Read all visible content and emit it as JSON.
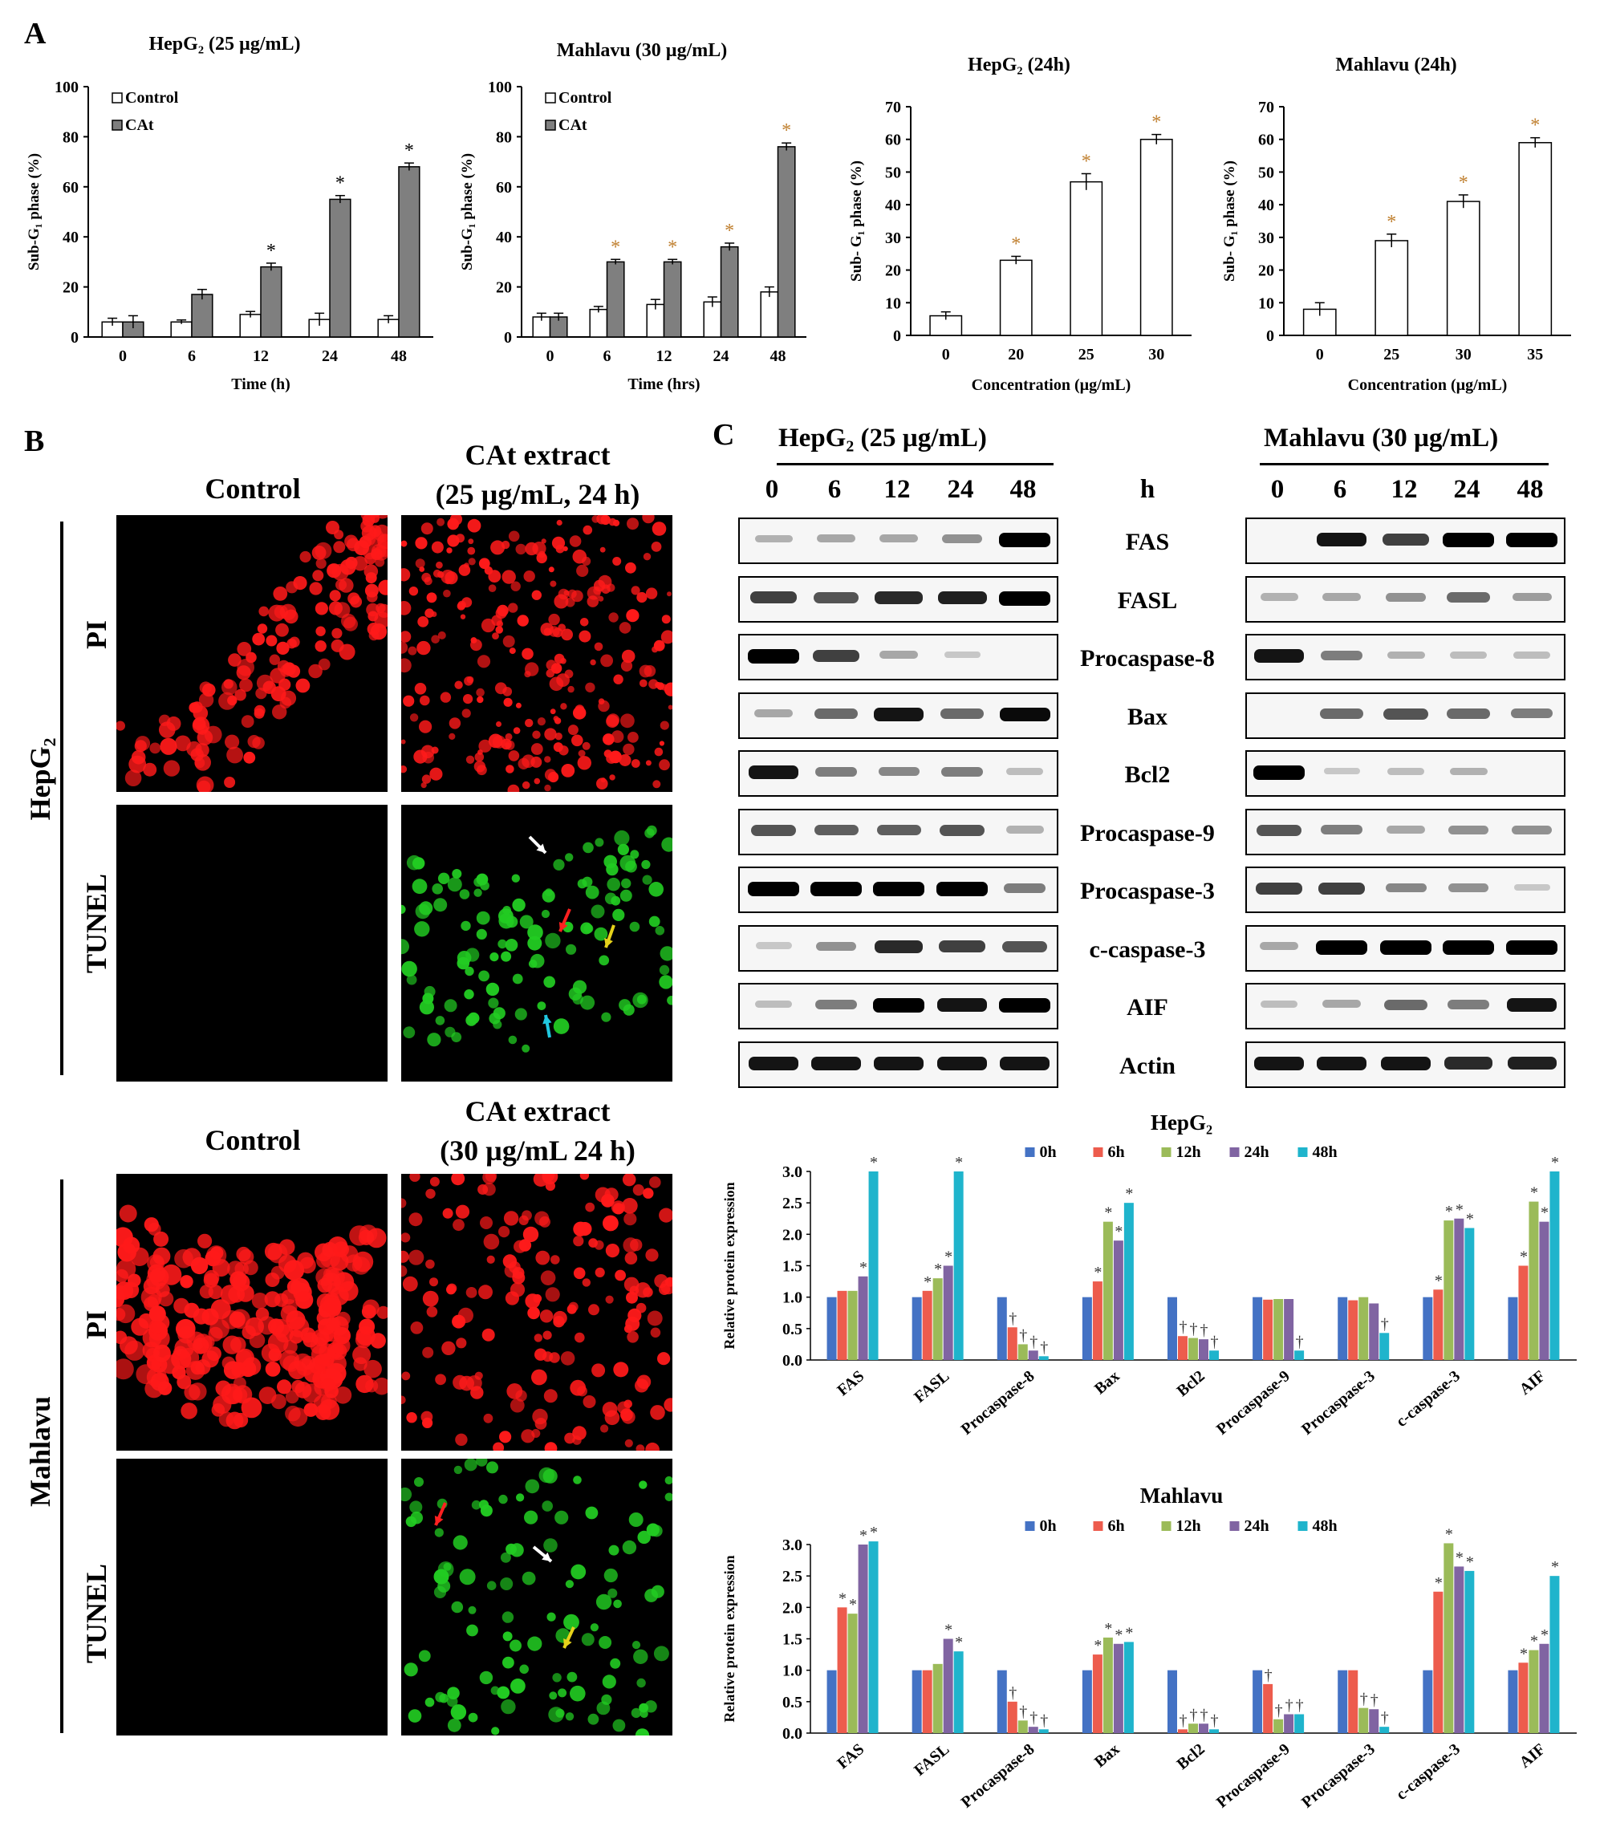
{
  "panel_labels": {
    "A": "A",
    "B": "B",
    "C": "C"
  },
  "chart_data": [
    {
      "id": "a1",
      "type": "bar",
      "title": "HepG₂ (25 µg/mL)",
      "xlabel": "Time (h)",
      "ylabel": "Sub-G₁ phase (%)",
      "categories": [
        "0",
        "6",
        "12",
        "24",
        "48"
      ],
      "ylim": [
        0,
        100
      ],
      "yticks": [
        0,
        20,
        40,
        60,
        80,
        100
      ],
      "legend": "top-left",
      "series": [
        {
          "name": "Control",
          "color": "#ffffff",
          "values": [
            6,
            6,
            9,
            7,
            7
          ],
          "errors": [
            1.5,
            0.8,
            1.2,
            2.5,
            1.5
          ]
        },
        {
          "name": "CAt",
          "color": "#7f7f7f",
          "values": [
            6,
            17,
            28,
            55,
            68
          ],
          "errors": [
            2.5,
            2,
            1.5,
            1.5,
            1.5
          ]
        }
      ],
      "stars": [
        "",
        "",
        "*",
        "*",
        "*"
      ],
      "star_color": "#000000"
    },
    {
      "id": "a2",
      "type": "bar",
      "title": "Mahlavu (30 µg/mL)",
      "xlabel": "Time (hrs)",
      "ylabel": "Sub-G₁ phase (%)",
      "categories": [
        "0",
        "6",
        "12",
        "24",
        "48"
      ],
      "ylim": [
        0,
        100
      ],
      "yticks": [
        0,
        20,
        40,
        60,
        80,
        100
      ],
      "legend": "top-left",
      "series": [
        {
          "name": "Control",
          "color": "#ffffff",
          "values": [
            8,
            11,
            13,
            14,
            18
          ],
          "errors": [
            1.5,
            1.2,
            2,
            2,
            2
          ]
        },
        {
          "name": "CAt",
          "color": "#7f7f7f",
          "values": [
            8,
            30,
            30,
            36,
            76
          ],
          "errors": [
            1.5,
            1,
            1,
            1.5,
            1.5
          ]
        }
      ],
      "stars": [
        "",
        "*",
        "*",
        "*",
        "*"
      ],
      "star_color": "#c08030"
    },
    {
      "id": "a3",
      "type": "bar",
      "title": "HepG₂ (24h)",
      "xlabel": "Concentration  (µg/mL)",
      "ylabel": "Sub- G₁ phase (%)",
      "categories": [
        "0",
        "20",
        "25",
        "30"
      ],
      "ylim": [
        0,
        70
      ],
      "yticks": [
        0,
        10,
        20,
        30,
        40,
        50,
        60,
        70
      ],
      "series": [
        {
          "name": "",
          "color": "#ffffff",
          "values": [
            6,
            23,
            47,
            60
          ],
          "errors": [
            1.2,
            1.2,
            2.5,
            1.5
          ]
        }
      ],
      "stars": [
        "",
        "*",
        "*",
        "*"
      ],
      "star_color": "#c08030"
    },
    {
      "id": "a4",
      "type": "bar",
      "title": "Mahlavu (24h)",
      "xlabel": "Concentration  (µg/mL)",
      "ylabel": "Sub- G₁ phase (%)",
      "categories": [
        "0",
        "25",
        "30",
        "35"
      ],
      "ylim": [
        0,
        70
      ],
      "yticks": [
        0,
        10,
        20,
        30,
        40,
        50,
        60,
        70
      ],
      "series": [
        {
          "name": "",
          "color": "#ffffff",
          "values": [
            8,
            29,
            41,
            59
          ],
          "errors": [
            2,
            2,
            2,
            1.5
          ]
        }
      ],
      "stars": [
        "",
        "*",
        "*",
        "*"
      ],
      "star_color": "#c08030"
    },
    {
      "id": "c1",
      "type": "bar",
      "title": "HepG₂",
      "ylabel": "Relative protein expression",
      "categories": [
        "FAS",
        "FASL",
        "Procaspase-8",
        "Bax",
        "Bcl2",
        "Procaspase-9",
        "Procaspase-3",
        "c-caspase-3",
        "AIF"
      ],
      "ylim": [
        0,
        3.0
      ],
      "yticks": [
        "0.0",
        "0.5",
        "1.0",
        "1.5",
        "2.0",
        "2.5",
        "3.0"
      ],
      "legend": "top",
      "series": [
        {
          "name": "0h",
          "color": "#4472c4",
          "values": [
            1.0,
            1.0,
            1.0,
            1.0,
            1.0,
            1.0,
            1.0,
            1.0,
            1.0
          ]
        },
        {
          "name": "6h",
          "color": "#ed5c4d",
          "values": [
            1.1,
            1.1,
            0.52,
            1.25,
            0.38,
            0.96,
            0.95,
            1.12,
            1.5
          ]
        },
        {
          "name": "12h",
          "color": "#9bbb59",
          "values": [
            1.1,
            1.3,
            0.25,
            2.2,
            0.35,
            0.97,
            1.0,
            2.22,
            2.52
          ]
        },
        {
          "name": "24h",
          "color": "#8064a2",
          "values": [
            1.33,
            1.5,
            0.15,
            1.9,
            0.33,
            0.97,
            0.9,
            2.25,
            2.2
          ]
        },
        {
          "name": "48h",
          "color": "#1fb4cc",
          "values": [
            3.0,
            3.0,
            0.06,
            2.5,
            0.15,
            0.15,
            0.43,
            2.1,
            3.0
          ]
        }
      ],
      "marks": [
        [
          "",
          "",
          "",
          "*",
          "*"
        ],
        [
          "",
          "*",
          "*",
          "*",
          "*"
        ],
        [
          "",
          "†",
          "†",
          "†",
          "†"
        ],
        [
          "",
          "*",
          "*",
          "*",
          "*"
        ],
        [
          "",
          "†",
          "†",
          "†",
          "†"
        ],
        [
          "",
          "",
          "",
          "",
          "†"
        ],
        [
          "",
          "",
          "",
          "",
          "†"
        ],
        [
          "",
          "*",
          "*",
          "*",
          "*"
        ],
        [
          "",
          "*",
          "*",
          "*",
          "*"
        ]
      ]
    },
    {
      "id": "c2",
      "type": "bar",
      "title": "Mahlavu",
      "ylabel": "Relative protein expression",
      "categories": [
        "FAS",
        "FASL",
        "Procaspase-8",
        "Bax",
        "Bcl2",
        "Procaspase-9",
        "Procaspase-3",
        "c-caspase-3",
        "AIF"
      ],
      "ylim": [
        0,
        3.0
      ],
      "yticks": [
        "0.0",
        "0.5",
        "1.0",
        "1.5",
        "2.0",
        "2.5",
        "3.0"
      ],
      "legend": "top",
      "series": [
        {
          "name": "0h",
          "color": "#4472c4",
          "values": [
            1.0,
            1.0,
            1.0,
            1.0,
            1.0,
            1.0,
            1.0,
            1.0,
            1.0
          ]
        },
        {
          "name": "6h",
          "color": "#ed5c4d",
          "values": [
            2.0,
            1.0,
            0.5,
            1.25,
            0.06,
            0.78,
            1.0,
            2.25,
            1.12
          ]
        },
        {
          "name": "12h",
          "color": "#9bbb59",
          "values": [
            1.9,
            1.1,
            0.2,
            1.52,
            0.15,
            0.22,
            0.4,
            3.02,
            1.32
          ]
        },
        {
          "name": "24h",
          "color": "#8064a2",
          "values": [
            3.0,
            1.5,
            0.1,
            1.42,
            0.15,
            0.3,
            0.38,
            2.65,
            1.42
          ]
        },
        {
          "name": "48h",
          "color": "#1fb4cc",
          "values": [
            3.05,
            1.3,
            0.06,
            1.45,
            0.06,
            0.3,
            0.1,
            2.58,
            2.5
          ]
        }
      ],
      "marks": [
        [
          "",
          "*",
          "*",
          "*",
          "*"
        ],
        [
          "",
          "",
          "",
          "*",
          "*"
        ],
        [
          "",
          "†",
          "†",
          "†",
          "†"
        ],
        [
          "",
          "*",
          "*",
          "*",
          "*"
        ],
        [
          "",
          "†",
          "†",
          "†",
          "†"
        ],
        [
          "",
          "†",
          "†",
          "†",
          "†"
        ],
        [
          "",
          "",
          "†",
          "†",
          "†"
        ],
        [
          "",
          "*",
          "*",
          "*",
          "*"
        ],
        [
          "",
          "*",
          "*",
          "*",
          "*"
        ]
      ]
    }
  ],
  "panel_b": {
    "hep": {
      "cell": "HepG₂",
      "control": "Control",
      "treat_line1": "CAt extract",
      "treat_line2": "(25 µg/mL, 24 h)",
      "row1": "PI",
      "row2": "TUNEL"
    },
    "mah": {
      "cell": "Mahlavu",
      "control": "Control",
      "treat_line1": "CAt extract",
      "treat_line2": "(30 µg/mL 24 h)",
      "row1": "PI",
      "row2": "TUNEL"
    }
  },
  "panel_c": {
    "hep_header": "HepG₂  (25 µg/mL)",
    "mah_header": "Mahlavu (30 µg/mL)",
    "time_unit": "h",
    "times": [
      "0",
      "6",
      "12",
      "24",
      "48"
    ],
    "proteins": [
      "FAS",
      "FASL",
      "Procaspase-8",
      "Bax",
      "Bcl2",
      "Procaspase-9",
      "Procaspase-3",
      "c-caspase-3",
      "AIF",
      "Actin"
    ],
    "hep_bands": [
      [
        0.15,
        0.2,
        0.2,
        0.3,
        1.0
      ],
      [
        0.7,
        0.6,
        0.8,
        0.85,
        1.0
      ],
      [
        1.0,
        0.7,
        0.2,
        0.05,
        0.0
      ],
      [
        0.2,
        0.5,
        0.9,
        0.5,
        0.95
      ],
      [
        0.9,
        0.4,
        0.35,
        0.4,
        0.1
      ],
      [
        0.6,
        0.55,
        0.55,
        0.6,
        0.15
      ],
      [
        1.0,
        1.0,
        1.0,
        1.0,
        0.4
      ],
      [
        0.05,
        0.3,
        0.8,
        0.7,
        0.6
      ],
      [
        0.1,
        0.4,
        1.0,
        0.9,
        1.0
      ],
      [
        0.9,
        0.9,
        0.9,
        0.9,
        0.9
      ]
    ],
    "mah_bands": [
      [
        0.0,
        0.9,
        0.7,
        1.0,
        1.0
      ],
      [
        0.15,
        0.2,
        0.3,
        0.5,
        0.25
      ],
      [
        0.9,
        0.4,
        0.15,
        0.1,
        0.1
      ],
      [
        0.0,
        0.5,
        0.6,
        0.5,
        0.4
      ],
      [
        1.0,
        0.05,
        0.1,
        0.15,
        0.0
      ],
      [
        0.6,
        0.4,
        0.2,
        0.3,
        0.3
      ],
      [
        0.7,
        0.7,
        0.35,
        0.3,
        0.05
      ],
      [
        0.2,
        1.0,
        1.0,
        1.0,
        1.0
      ],
      [
        0.1,
        0.2,
        0.5,
        0.4,
        0.9
      ],
      [
        0.9,
        0.9,
        0.9,
        0.8,
        0.85
      ]
    ]
  }
}
